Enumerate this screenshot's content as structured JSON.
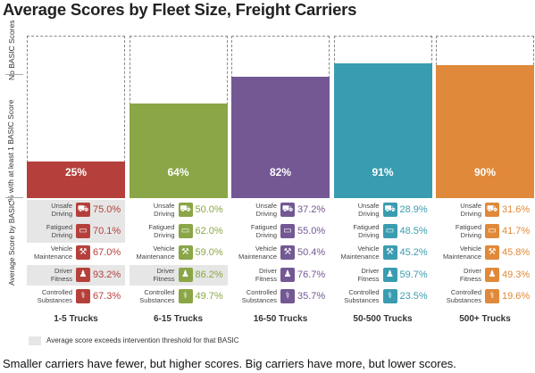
{
  "chart_data": {
    "type": "bar",
    "title": "Average Scores by Fleet Size, Freight Carriers",
    "caption": "Smaller carriers have fewer, but higher scores. Big carriers have more, but lower scores.",
    "y_axis": {
      "top_label": "No BASIC Scores",
      "middle_label": "% with at least 1 BASIC Score",
      "bottom_label": "Average Score by BASIC"
    },
    "ylim": [
      0,
      100
    ],
    "categories": [
      "1-5 Trucks",
      "6-15 Trucks",
      "16-50 Trucks",
      "50-500 Trucks",
      "500+ Trucks"
    ],
    "values": [
      25,
      64,
      82,
      91,
      90
    ],
    "value_labels": [
      "25%",
      "64%",
      "82%",
      "91%",
      "90%"
    ],
    "colors": [
      "#b5403b",
      "#8aa646",
      "#735894",
      "#3a9cb0",
      "#e0893a"
    ],
    "metrics": [
      "Unsafe\nDriving",
      "Fatigued\nDriving",
      "Vehicle\nMaintenance",
      "Driver\nFitness",
      "Controlled\nSubstances"
    ],
    "metric_icons": [
      "car-icon",
      "bed-icon",
      "wrench-icon",
      "person-icon",
      "syringe-icon"
    ],
    "icon_glyphs": [
      "⛟",
      "▭",
      "⚒",
      "♟",
      "⚕"
    ],
    "scores": [
      [
        "75.0%",
        "70.1%",
        "67.0%",
        "93.2%",
        "67.3%"
      ],
      [
        "50.0%",
        "62.0%",
        "59.0%",
        "86.2%",
        "49.7%"
      ],
      [
        "37.2%",
        "55.0%",
        "50.4%",
        "76.7%",
        "35.7%"
      ],
      [
        "28.9%",
        "48.5%",
        "45.2%",
        "59.7%",
        "23.5%"
      ],
      [
        "31.6%",
        "41.7%",
        "45.8%",
        "49.3%",
        "19.6%"
      ]
    ],
    "exceeds_threshold": [
      [
        true,
        true,
        false,
        true,
        false
      ],
      [
        false,
        false,
        false,
        true,
        false
      ],
      [
        false,
        false,
        false,
        false,
        false
      ],
      [
        false,
        false,
        false,
        false,
        false
      ],
      [
        false,
        false,
        false,
        false,
        false
      ]
    ],
    "legend": "Average score exceeds intervention threshold for that BASIC"
  }
}
